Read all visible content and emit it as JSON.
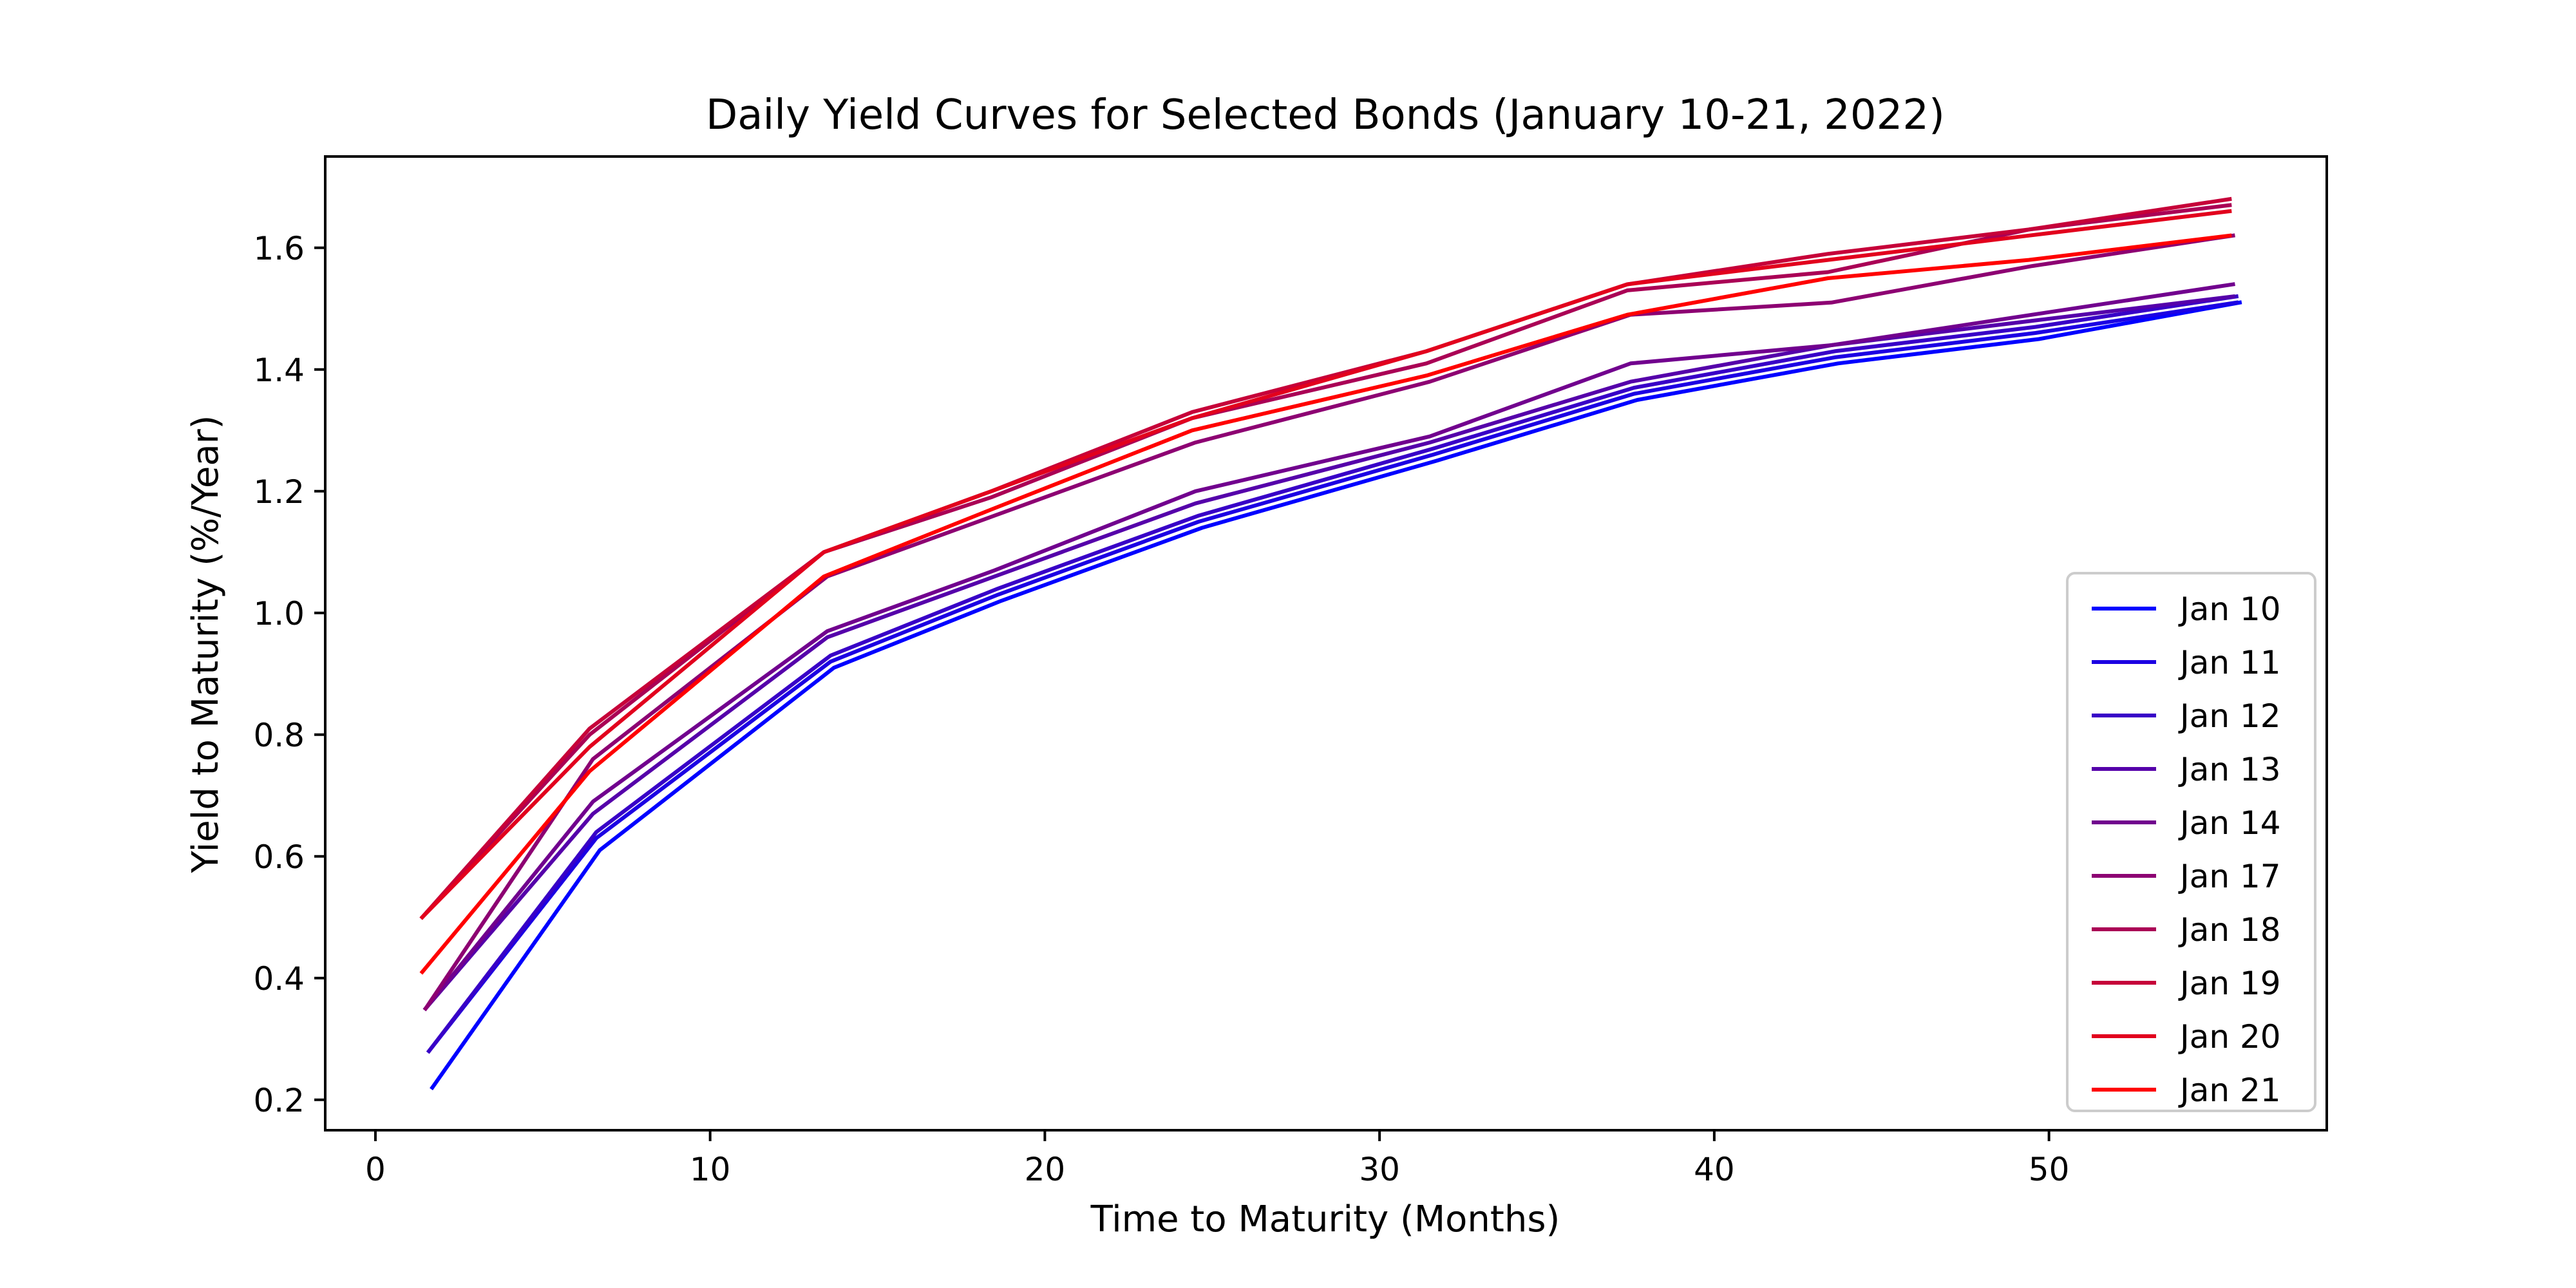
{
  "chart_data": {
    "type": "line",
    "title": "Daily Yield Curves for Selected Bonds (January 10-21, 2022)",
    "xlabel": "Time to Maturity (Months)",
    "ylabel": "Yield to Maturity (%/Year)",
    "xlim": [
      -1.5,
      58.3
    ],
    "ylim": [
      0.15,
      1.75
    ],
    "xticks": [
      0,
      10,
      20,
      30,
      40,
      50
    ],
    "yticks": [
      0.2,
      0.4,
      0.6,
      0.8,
      1.0,
      1.2,
      1.4,
      1.6
    ],
    "grid": false,
    "legend_position": "lower right",
    "series": [
      {
        "name": "Jan 10",
        "color": "#0000ff",
        "x": [
          1.7,
          6.7,
          13.7,
          18.7,
          24.7,
          31.7,
          37.7,
          43.7,
          49.7,
          55.7
        ],
        "y": [
          0.22,
          0.61,
          0.91,
          1.02,
          1.14,
          1.25,
          1.35,
          1.41,
          1.45,
          1.51
        ]
      },
      {
        "name": "Jan 11",
        "color": "#1c00e3",
        "x": [
          1.6,
          6.6,
          13.6,
          18.6,
          24.6,
          31.6,
          37.6,
          43.6,
          49.6,
          55.6
        ],
        "y": [
          0.28,
          0.63,
          0.92,
          1.03,
          1.15,
          1.26,
          1.36,
          1.42,
          1.46,
          1.51
        ]
      },
      {
        "name": "Jan 12",
        "color": "#3800c7",
        "x": [
          1.6,
          6.6,
          13.6,
          18.6,
          24.6,
          31.6,
          37.6,
          43.6,
          49.6,
          55.6
        ],
        "y": [
          0.28,
          0.64,
          0.93,
          1.04,
          1.16,
          1.27,
          1.37,
          1.43,
          1.47,
          1.52
        ]
      },
      {
        "name": "Jan 13",
        "color": "#5500aa",
        "x": [
          1.5,
          6.5,
          13.5,
          18.5,
          24.5,
          31.5,
          37.5,
          43.5,
          49.5,
          55.5
        ],
        "y": [
          0.35,
          0.67,
          0.96,
          1.06,
          1.18,
          1.28,
          1.38,
          1.44,
          1.48,
          1.52
        ]
      },
      {
        "name": "Jan 14",
        "color": "#71008e",
        "x": [
          1.5,
          6.5,
          13.5,
          18.5,
          24.5,
          31.5,
          37.5,
          43.5,
          49.5,
          55.5
        ],
        "y": [
          0.35,
          0.69,
          0.97,
          1.07,
          1.2,
          1.29,
          1.41,
          1.44,
          1.49,
          1.54
        ]
      },
      {
        "name": "Jan 17",
        "color": "#8d0072",
        "x": [
          1.5,
          6.5,
          13.5,
          18.5,
          24.5,
          31.5,
          37.5,
          43.5,
          49.5,
          55.5
        ],
        "y": [
          0.35,
          0.76,
          1.06,
          1.16,
          1.28,
          1.38,
          1.49,
          1.51,
          1.57,
          1.62
        ]
      },
      {
        "name": "Jan 18",
        "color": "#aa0055",
        "x": [
          1.4,
          6.4,
          13.4,
          18.4,
          24.4,
          31.4,
          37.4,
          43.4,
          49.4,
          55.4
        ],
        "y": [
          0.5,
          0.8,
          1.1,
          1.19,
          1.32,
          1.41,
          1.53,
          1.56,
          1.63,
          1.67
        ]
      },
      {
        "name": "Jan 19",
        "color": "#c60039",
        "x": [
          1.4,
          6.4,
          13.4,
          18.4,
          24.4,
          31.4,
          37.4,
          43.4,
          49.4,
          55.4
        ],
        "y": [
          0.5,
          0.81,
          1.1,
          1.2,
          1.33,
          1.43,
          1.54,
          1.59,
          1.63,
          1.68
        ]
      },
      {
        "name": "Jan 20",
        "color": "#e2001d",
        "x": [
          1.4,
          6.4,
          13.4,
          18.4,
          24.4,
          31.4,
          37.4,
          43.4,
          49.4,
          55.4
        ],
        "y": [
          0.5,
          0.78,
          1.1,
          1.2,
          1.32,
          1.43,
          1.54,
          1.58,
          1.62,
          1.66
        ]
      },
      {
        "name": "Jan 21",
        "color": "#ff0000",
        "x": [
          1.4,
          6.4,
          13.4,
          18.4,
          24.4,
          31.4,
          37.4,
          43.4,
          49.4,
          55.4
        ],
        "y": [
          0.41,
          0.74,
          1.06,
          1.17,
          1.3,
          1.39,
          1.49,
          1.55,
          1.58,
          1.62
        ]
      }
    ]
  }
}
